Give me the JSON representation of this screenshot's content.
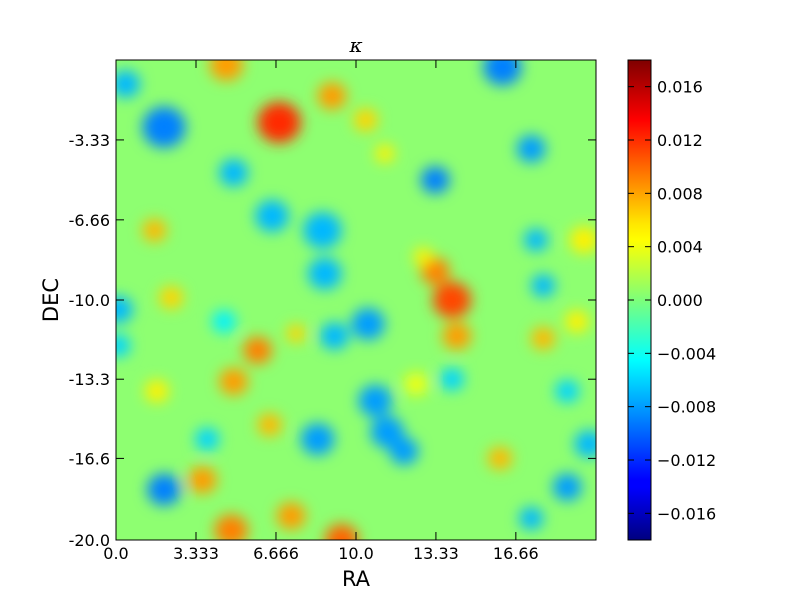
{
  "chart_data": {
    "type": "heatmap",
    "title": "κ",
    "xlabel": "RA",
    "ylabel": "DEC",
    "xlim": [
      0.0,
      20.0
    ],
    "ylim": [
      -20.0,
      0.0
    ],
    "x_ticks": [
      0.0,
      3.333,
      6.666,
      10.0,
      13.33,
      16.66
    ],
    "x_tick_labels": [
      "0.0",
      "3.333",
      "6.666",
      "10.0",
      "13.33",
      "16.66"
    ],
    "y_ticks": [
      -3.33,
      -6.66,
      -10.0,
      -13.3,
      -16.6,
      -20.0
    ],
    "y_tick_labels": [
      "-3.33",
      "-6.66",
      "-10.0",
      "-13.3",
      "-16.6",
      "-20.0"
    ],
    "colorbar": {
      "colormap": "jet",
      "range": [
        -0.018,
        0.018
      ],
      "ticks": [
        0.016,
        0.012,
        0.008,
        0.004,
        0.0,
        -0.004,
        -0.008,
        -0.012,
        -0.016
      ],
      "tick_labels": [
        "0.016",
        "0.012",
        "0.008",
        "0.004",
        "0.000",
        "−0.004",
        "−0.008",
        "−0.012",
        "−0.016"
      ]
    },
    "background_value": 0.0005,
    "features": [
      {
        "ra": 6.8,
        "dec": -2.6,
        "value": 0.012,
        "size": 0.9
      },
      {
        "ra": 14.0,
        "dec": -10.0,
        "value": 0.011,
        "size": 0.8
      },
      {
        "ra": 13.3,
        "dec": -8.8,
        "value": 0.009,
        "size": 0.6
      },
      {
        "ra": 14.2,
        "dec": -11.5,
        "value": 0.008,
        "size": 0.6
      },
      {
        "ra": 9.4,
        "dec": -20.0,
        "value": 0.01,
        "size": 0.7
      },
      {
        "ra": 4.8,
        "dec": -19.6,
        "value": 0.009,
        "size": 0.7
      },
      {
        "ra": 4.6,
        "dec": -0.2,
        "value": 0.008,
        "size": 0.7
      },
      {
        "ra": 9.0,
        "dec": -1.5,
        "value": 0.008,
        "size": 0.6
      },
      {
        "ra": 5.9,
        "dec": -12.1,
        "value": 0.009,
        "size": 0.6
      },
      {
        "ra": 4.9,
        "dec": -13.4,
        "value": 0.008,
        "size": 0.6
      },
      {
        "ra": 3.6,
        "dec": -17.5,
        "value": 0.008,
        "size": 0.6
      },
      {
        "ra": 7.3,
        "dec": -19.0,
        "value": 0.008,
        "size": 0.6
      },
      {
        "ra": 6.4,
        "dec": -15.2,
        "value": 0.007,
        "size": 0.5
      },
      {
        "ra": 16.0,
        "dec": -16.6,
        "value": 0.007,
        "size": 0.5
      },
      {
        "ra": 17.8,
        "dec": -11.6,
        "value": 0.007,
        "size": 0.5
      },
      {
        "ra": 1.6,
        "dec": -7.1,
        "value": 0.007,
        "size": 0.5
      },
      {
        "ra": 2.3,
        "dec": -9.9,
        "value": 0.006,
        "size": 0.5
      },
      {
        "ra": 7.5,
        "dec": -11.4,
        "value": 0.006,
        "size": 0.4
      },
      {
        "ra": 1.7,
        "dec": -13.8,
        "value": 0.005,
        "size": 0.5
      },
      {
        "ra": 10.4,
        "dec": -2.5,
        "value": 0.006,
        "size": 0.5
      },
      {
        "ra": 11.2,
        "dec": -3.9,
        "value": 0.005,
        "size": 0.4
      },
      {
        "ra": 12.8,
        "dec": -8.2,
        "value": 0.005,
        "size": 0.4
      },
      {
        "ra": 19.5,
        "dec": -7.5,
        "value": 0.005,
        "size": 0.6
      },
      {
        "ra": 19.2,
        "dec": -10.9,
        "value": 0.005,
        "size": 0.5
      },
      {
        "ra": 12.5,
        "dec": -13.5,
        "value": 0.004,
        "size": 0.5
      },
      {
        "ra": 2.0,
        "dec": -2.8,
        "value": -0.009,
        "size": 0.9
      },
      {
        "ra": 0.4,
        "dec": -1.0,
        "value": -0.007,
        "size": 0.6
      },
      {
        "ra": 16.1,
        "dec": -0.3,
        "value": -0.009,
        "size": 0.8
      },
      {
        "ra": 13.3,
        "dec": -5.0,
        "value": -0.009,
        "size": 0.6
      },
      {
        "ra": 17.3,
        "dec": -3.7,
        "value": -0.008,
        "size": 0.6
      },
      {
        "ra": 4.9,
        "dec": -4.7,
        "value": -0.007,
        "size": 0.6
      },
      {
        "ra": 6.5,
        "dec": -6.5,
        "value": -0.007,
        "size": 0.7
      },
      {
        "ra": 8.6,
        "dec": -7.1,
        "value": -0.007,
        "size": 0.8
      },
      {
        "ra": 8.7,
        "dec": -8.9,
        "value": -0.007,
        "size": 0.7
      },
      {
        "ra": 10.5,
        "dec": -11.0,
        "value": -0.008,
        "size": 0.7
      },
      {
        "ra": 9.1,
        "dec": -11.5,
        "value": -0.007,
        "size": 0.6
      },
      {
        "ra": 0.1,
        "dec": -10.4,
        "value": -0.007,
        "size": 0.6
      },
      {
        "ra": 0.1,
        "dec": -11.9,
        "value": -0.006,
        "size": 0.5
      },
      {
        "ra": 17.5,
        "dec": -7.5,
        "value": -0.007,
        "size": 0.5
      },
      {
        "ra": 17.8,
        "dec": -9.4,
        "value": -0.007,
        "size": 0.5
      },
      {
        "ra": 14.0,
        "dec": -13.3,
        "value": -0.006,
        "size": 0.5
      },
      {
        "ra": 10.8,
        "dec": -14.2,
        "value": -0.008,
        "size": 0.7
      },
      {
        "ra": 8.4,
        "dec": -15.8,
        "value": -0.008,
        "size": 0.7
      },
      {
        "ra": 11.3,
        "dec": -15.5,
        "value": -0.008,
        "size": 0.7
      },
      {
        "ra": 12.0,
        "dec": -16.3,
        "value": -0.008,
        "size": 0.6
      },
      {
        "ra": 2.0,
        "dec": -17.9,
        "value": -0.009,
        "size": 0.7
      },
      {
        "ra": 18.8,
        "dec": -17.8,
        "value": -0.008,
        "size": 0.6
      },
      {
        "ra": 19.7,
        "dec": -16.0,
        "value": -0.007,
        "size": 0.6
      },
      {
        "ra": 17.3,
        "dec": -19.1,
        "value": -0.007,
        "size": 0.5
      },
      {
        "ra": 3.8,
        "dec": -15.8,
        "value": -0.006,
        "size": 0.5
      },
      {
        "ra": 18.8,
        "dec": -13.8,
        "value": -0.006,
        "size": 0.5
      },
      {
        "ra": 4.5,
        "dec": -10.9,
        "value": -0.005,
        "size": 0.5
      }
    ]
  }
}
